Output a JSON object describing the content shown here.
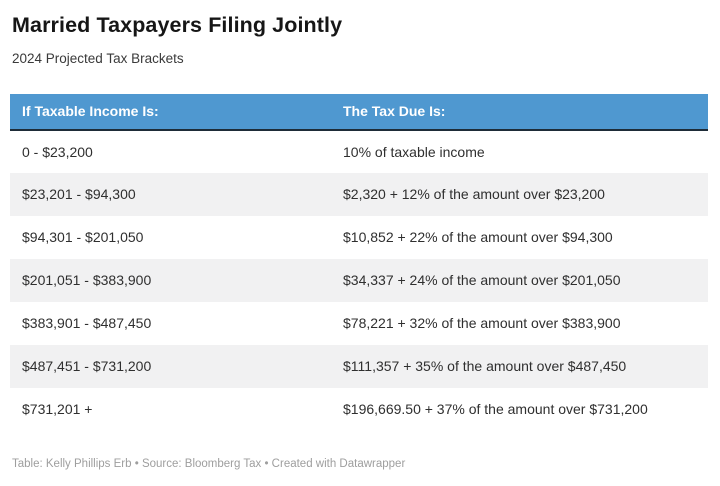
{
  "chart_data": {
    "type": "table",
    "title": "Married Taxpayers Filing Jointly",
    "subtitle": "2024 Projected Tax Brackets",
    "columns": [
      "If Taxable Income Is:",
      "The Tax Due Is:"
    ],
    "rows": [
      [
        "0 - $23,200",
        "10% of taxable income"
      ],
      [
        "$23,201 - $94,300",
        "$2,320 + 12% of the amount over $23,200"
      ],
      [
        "$94,301 - $201,050",
        "$10,852 + 22% of the amount over $94,300"
      ],
      [
        "$201,051 - $383,900",
        "$34,337 + 24% of the amount over $201,050"
      ],
      [
        "$383,901 - $487,450",
        "$78,221 + 32% of the amount over $383,900"
      ],
      [
        "$487,451 - $731,200",
        "$111,357 + 35% of the amount over $487,450"
      ],
      [
        "$731,201 +",
        "$196,669.50 + 37% of the amount over $731,200"
      ]
    ],
    "attribution": "Table: Kelly Phillips Erb • Source: Bloomberg Tax • Created with Datawrapper",
    "layout_hints": {
      "header_position": "top",
      "zebra_striping": true,
      "grid": false
    }
  },
  "colors": {
    "header_bg": "#4f98d0",
    "header_text": "#ffffff",
    "header_border": "#1e2c38",
    "zebra_row": "#f1f1f2",
    "body_text": "#2f2f2f",
    "title_text": "#161616",
    "attribution_text": "#9e9e9e"
  }
}
